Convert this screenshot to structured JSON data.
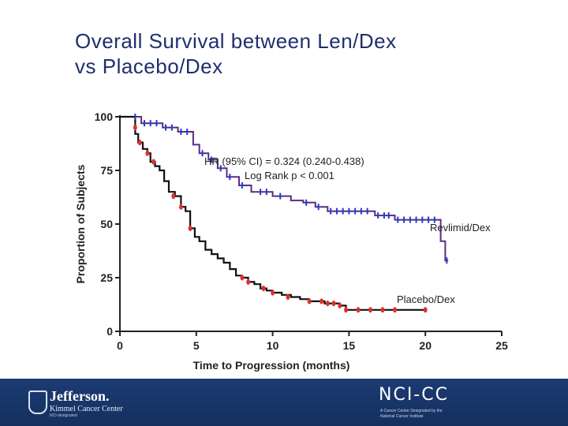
{
  "slide": {
    "title_line1": "Overall Survival between Len/Dex",
    "title_line2": "vs Placebo/Dex"
  },
  "footer": {
    "jefferson_name": "Jefferson.",
    "jefferson_sub": "Kimmel Cancer Center",
    "jefferson_sub2": "NCI-designated",
    "nccc_mark": "NCI-CC",
    "nccc_sub1": "A Cancer Center Designated by the",
    "nccc_sub2": "National Cancer Institute"
  },
  "colors": {
    "title": "#1f2f6e",
    "revlimid_line": "#5a2d82",
    "revlimid_censor": "#1d3fcf",
    "placebo_line": "#111111",
    "placebo_censor": "#e0302a",
    "axis": "#222222",
    "footer_bg": "#1c3b73"
  },
  "chart_data": {
    "type": "line",
    "xlabel": "Time to Progression (months)",
    "ylabel": "Proportion of Subjects",
    "xlim": [
      0,
      25
    ],
    "ylim": [
      0,
      100
    ],
    "xticks": [
      0,
      5,
      10,
      15,
      20,
      25
    ],
    "yticks": [
      0,
      25,
      50,
      75,
      100
    ],
    "annotations": [
      "HR (95% CI) = 0.324 (0.240-0.438)",
      "Log Rank p < 0.001"
    ],
    "series": [
      {
        "name": "Revlimid/Dex",
        "step": true,
        "points": [
          [
            0,
            100
          ],
          [
            1.2,
            100
          ],
          [
            1.4,
            97
          ],
          [
            2.5,
            97
          ],
          [
            2.8,
            95
          ],
          [
            3.6,
            95
          ],
          [
            3.8,
            93
          ],
          [
            4.6,
            93
          ],
          [
            4.8,
            87
          ],
          [
            5.0,
            87
          ],
          [
            5.2,
            83
          ],
          [
            5.6,
            83
          ],
          [
            5.8,
            80
          ],
          [
            6.2,
            80
          ],
          [
            6.4,
            76
          ],
          [
            6.8,
            76
          ],
          [
            7.0,
            72
          ],
          [
            7.6,
            72
          ],
          [
            7.8,
            68
          ],
          [
            8.4,
            68
          ],
          [
            8.6,
            65
          ],
          [
            9.8,
            65
          ],
          [
            10.0,
            63
          ],
          [
            11.0,
            63
          ],
          [
            11.2,
            61
          ],
          [
            11.8,
            61
          ],
          [
            12.0,
            60
          ],
          [
            12.6,
            60
          ],
          [
            12.8,
            58
          ],
          [
            13.4,
            58
          ],
          [
            13.6,
            56
          ],
          [
            16.5,
            56
          ],
          [
            16.7,
            54
          ],
          [
            17.8,
            54
          ],
          [
            18.0,
            52
          ],
          [
            20.8,
            52
          ],
          [
            21.0,
            42
          ],
          [
            21.3,
            33
          ],
          [
            21.5,
            33
          ]
        ],
        "censored": [
          [
            1.0,
            100
          ],
          [
            1.6,
            97
          ],
          [
            2.0,
            97
          ],
          [
            2.4,
            97
          ],
          [
            3.0,
            95
          ],
          [
            3.4,
            95
          ],
          [
            4.0,
            93
          ],
          [
            4.4,
            93
          ],
          [
            5.4,
            83
          ],
          [
            6.0,
            80
          ],
          [
            6.6,
            76
          ],
          [
            7.2,
            72
          ],
          [
            8.0,
            68
          ],
          [
            9.2,
            65
          ],
          [
            9.6,
            65
          ],
          [
            10.5,
            63
          ],
          [
            12.2,
            60
          ],
          [
            13.0,
            58
          ],
          [
            13.8,
            56
          ],
          [
            14.2,
            56
          ],
          [
            14.6,
            56
          ],
          [
            15.0,
            56
          ],
          [
            15.4,
            56
          ],
          [
            15.8,
            56
          ],
          [
            16.2,
            56
          ],
          [
            16.9,
            54
          ],
          [
            17.3,
            54
          ],
          [
            17.6,
            54
          ],
          [
            18.2,
            52
          ],
          [
            18.6,
            52
          ],
          [
            19.0,
            52
          ],
          [
            19.4,
            52
          ],
          [
            19.8,
            52
          ],
          [
            20.2,
            52
          ],
          [
            20.6,
            52
          ],
          [
            21.4,
            33
          ]
        ]
      },
      {
        "name": "Placebo/Dex",
        "step": true,
        "points": [
          [
            0,
            100
          ],
          [
            0.8,
            100
          ],
          [
            1.0,
            92
          ],
          [
            1.2,
            88
          ],
          [
            1.5,
            85
          ],
          [
            1.8,
            83
          ],
          [
            2.0,
            79
          ],
          [
            2.3,
            77
          ],
          [
            2.6,
            75
          ],
          [
            2.9,
            70
          ],
          [
            3.2,
            65
          ],
          [
            3.6,
            63
          ],
          [
            4.0,
            58
          ],
          [
            4.3,
            56
          ],
          [
            4.6,
            48
          ],
          [
            4.9,
            44
          ],
          [
            5.2,
            42
          ],
          [
            5.6,
            38
          ],
          [
            6.0,
            36
          ],
          [
            6.4,
            34
          ],
          [
            6.8,
            32
          ],
          [
            7.2,
            29
          ],
          [
            7.6,
            26
          ],
          [
            8.0,
            25
          ],
          [
            8.4,
            23
          ],
          [
            8.8,
            22
          ],
          [
            9.2,
            20
          ],
          [
            9.6,
            19
          ],
          [
            10.0,
            18
          ],
          [
            10.6,
            17
          ],
          [
            11.2,
            16
          ],
          [
            11.8,
            15
          ],
          [
            12.4,
            14
          ],
          [
            13.4,
            13
          ],
          [
            14.4,
            12
          ],
          [
            14.8,
            10
          ],
          [
            20.0,
            10
          ]
        ],
        "censored": [
          [
            1.0,
            95
          ],
          [
            1.3,
            88
          ],
          [
            1.8,
            83
          ],
          [
            2.2,
            79
          ],
          [
            3.5,
            63
          ],
          [
            4.0,
            58
          ],
          [
            4.6,
            48
          ],
          [
            8.0,
            25
          ],
          [
            8.4,
            23
          ],
          [
            9.4,
            20
          ],
          [
            10.0,
            18
          ],
          [
            11.0,
            16
          ],
          [
            12.4,
            14
          ],
          [
            13.2,
            14
          ],
          [
            13.6,
            13
          ],
          [
            14.0,
            13
          ],
          [
            14.4,
            12
          ],
          [
            14.8,
            10
          ],
          [
            15.6,
            10
          ],
          [
            16.4,
            10
          ],
          [
            17.2,
            10
          ],
          [
            18.0,
            10
          ],
          [
            20.0,
            10
          ]
        ]
      }
    ]
  }
}
